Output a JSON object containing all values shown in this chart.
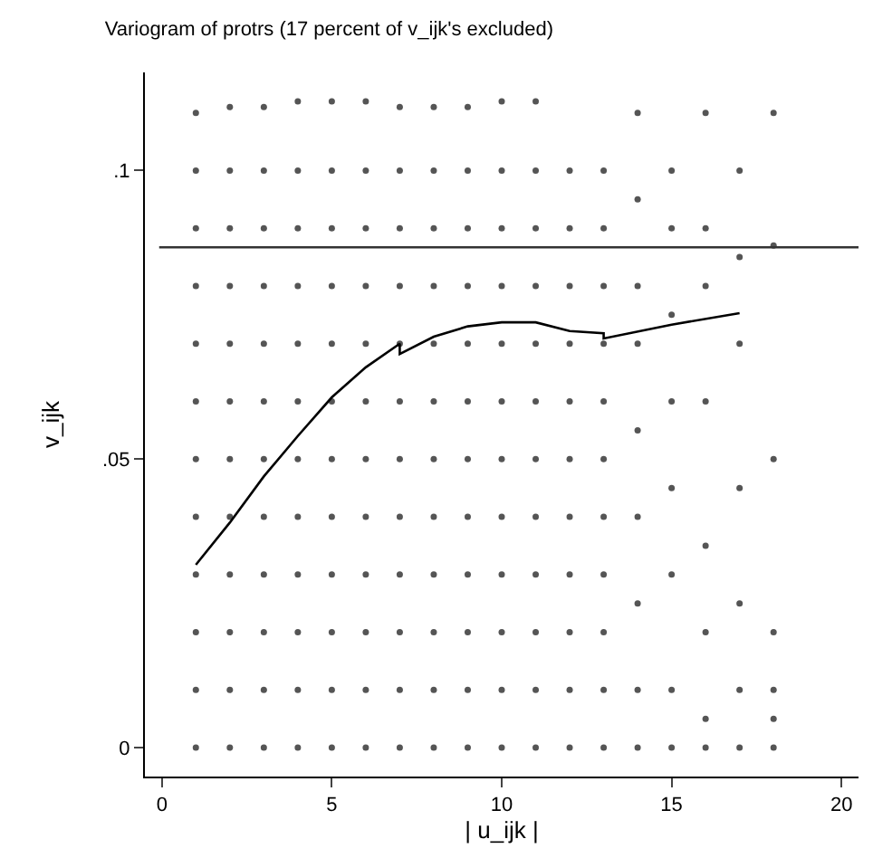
{
  "chart_data": {
    "type": "scatter",
    "title": "Variogram of protrs (17 percent of v_ijk's excluded)",
    "xlabel": "| u_ijk |",
    "ylabel": "v_ijk",
    "xlim": [
      -0.5,
      20.5
    ],
    "ylim": [
      -0.005,
      0.117
    ],
    "xticks": [
      0,
      5,
      10,
      15,
      20
    ],
    "yticks": [
      0,
      {
        "value": 0.05,
        "label": ".05"
      },
      {
        "value": 0.1,
        "label": ".1"
      }
    ],
    "series": [
      {
        "color": "#555555",
        "x": [
          1,
          1,
          1,
          1,
          1,
          1,
          1,
          1,
          1,
          1,
          1,
          1,
          2,
          2,
          2,
          2,
          2,
          2,
          2,
          2,
          2,
          2,
          2,
          2,
          3,
          3,
          3,
          3,
          3,
          3,
          3,
          3,
          3,
          3,
          3,
          3,
          4,
          4,
          4,
          4,
          4,
          4,
          4,
          4,
          4,
          4,
          4,
          4,
          5,
          5,
          5,
          5,
          5,
          5,
          5,
          5,
          5,
          5,
          5,
          5,
          6,
          6,
          6,
          6,
          6,
          6,
          6,
          6,
          6,
          6,
          6,
          6,
          7,
          7,
          7,
          7,
          7,
          7,
          7,
          7,
          7,
          7,
          7,
          7,
          8,
          8,
          8,
          8,
          8,
          8,
          8,
          8,
          8,
          8,
          8,
          8,
          9,
          9,
          9,
          9,
          9,
          9,
          9,
          9,
          9,
          9,
          9,
          9,
          10,
          10,
          10,
          10,
          10,
          10,
          10,
          10,
          10,
          10,
          10,
          10,
          11,
          11,
          11,
          11,
          11,
          11,
          11,
          11,
          11,
          11,
          11,
          11,
          12,
          12,
          12,
          12,
          12,
          12,
          12,
          12,
          12,
          12,
          12,
          13,
          13,
          13,
          13,
          13,
          13,
          13,
          13,
          13,
          13,
          13,
          14,
          14,
          14,
          14,
          14,
          14,
          14,
          14,
          14,
          15,
          15,
          15,
          15,
          15,
          15,
          15,
          15,
          16,
          16,
          16,
          16,
          16,
          16,
          16,
          16,
          17,
          17,
          17,
          17,
          17,
          17,
          17,
          18,
          18,
          18,
          18,
          18,
          18,
          18
        ],
        "values": [
          0,
          0.01,
          0.02,
          0.03,
          0.04,
          0.05,
          0.06,
          0.07,
          0.08,
          0.09,
          0.1,
          0.11,
          0,
          0.01,
          0.02,
          0.03,
          0.04,
          0.05,
          0.06,
          0.07,
          0.08,
          0.09,
          0.1,
          0.111,
          0,
          0.01,
          0.02,
          0.03,
          0.04,
          0.05,
          0.06,
          0.07,
          0.08,
          0.09,
          0.1,
          0.111,
          0,
          0.01,
          0.02,
          0.03,
          0.04,
          0.05,
          0.06,
          0.07,
          0.08,
          0.09,
          0.1,
          0.112,
          0,
          0.01,
          0.02,
          0.03,
          0.04,
          0.05,
          0.06,
          0.07,
          0.08,
          0.09,
          0.1,
          0.112,
          0,
          0.01,
          0.02,
          0.03,
          0.04,
          0.05,
          0.06,
          0.07,
          0.08,
          0.09,
          0.1,
          0.112,
          0,
          0.01,
          0.02,
          0.03,
          0.04,
          0.05,
          0.06,
          0.07,
          0.08,
          0.09,
          0.1,
          0.111,
          0,
          0.01,
          0.02,
          0.03,
          0.04,
          0.05,
          0.06,
          0.07,
          0.08,
          0.09,
          0.1,
          0.111,
          0,
          0.01,
          0.02,
          0.03,
          0.04,
          0.05,
          0.06,
          0.07,
          0.08,
          0.09,
          0.1,
          0.111,
          0,
          0.01,
          0.02,
          0.03,
          0.04,
          0.05,
          0.06,
          0.07,
          0.08,
          0.09,
          0.1,
          0.112,
          0,
          0.01,
          0.02,
          0.03,
          0.04,
          0.05,
          0.06,
          0.07,
          0.08,
          0.09,
          0.1,
          0.112,
          0,
          0.01,
          0.02,
          0.03,
          0.04,
          0.05,
          0.06,
          0.07,
          0.08,
          0.09,
          0.1,
          0,
          0.01,
          0.02,
          0.03,
          0.04,
          0.05,
          0.06,
          0.07,
          0.08,
          0.09,
          0.1,
          0,
          0.01,
          0.025,
          0.04,
          0.055,
          0.07,
          0.08,
          0.095,
          0.11,
          0,
          0.01,
          0.03,
          0.045,
          0.06,
          0.075,
          0.09,
          0.1,
          0,
          0.005,
          0.02,
          0.035,
          0.06,
          0.08,
          0.09,
          0.11,
          0,
          0.01,
          0.025,
          0.045,
          0.07,
          0.085,
          0.1,
          0,
          0.005,
          0.01,
          0.02,
          0.05,
          0.087,
          0.11
        ]
      },
      {
        "type": "line",
        "color": "#000000",
        "marker": "none",
        "x": [
          1,
          2,
          3,
          4,
          5,
          6,
          7,
          7,
          8,
          9,
          10,
          11,
          12,
          13,
          13,
          15,
          17
        ],
        "values": [
          0.0317,
          0.039,
          0.047,
          0.054,
          0.0607,
          0.0659,
          0.07,
          0.0682,
          0.0712,
          0.073,
          0.0737,
          0.0737,
          0.0722,
          0.0718,
          0.0709,
          0.0733,
          0.0753
        ]
      }
    ],
    "ref_lines": [
      {
        "axis": "y",
        "value": 0.0867,
        "color": "#333333"
      }
    ]
  }
}
